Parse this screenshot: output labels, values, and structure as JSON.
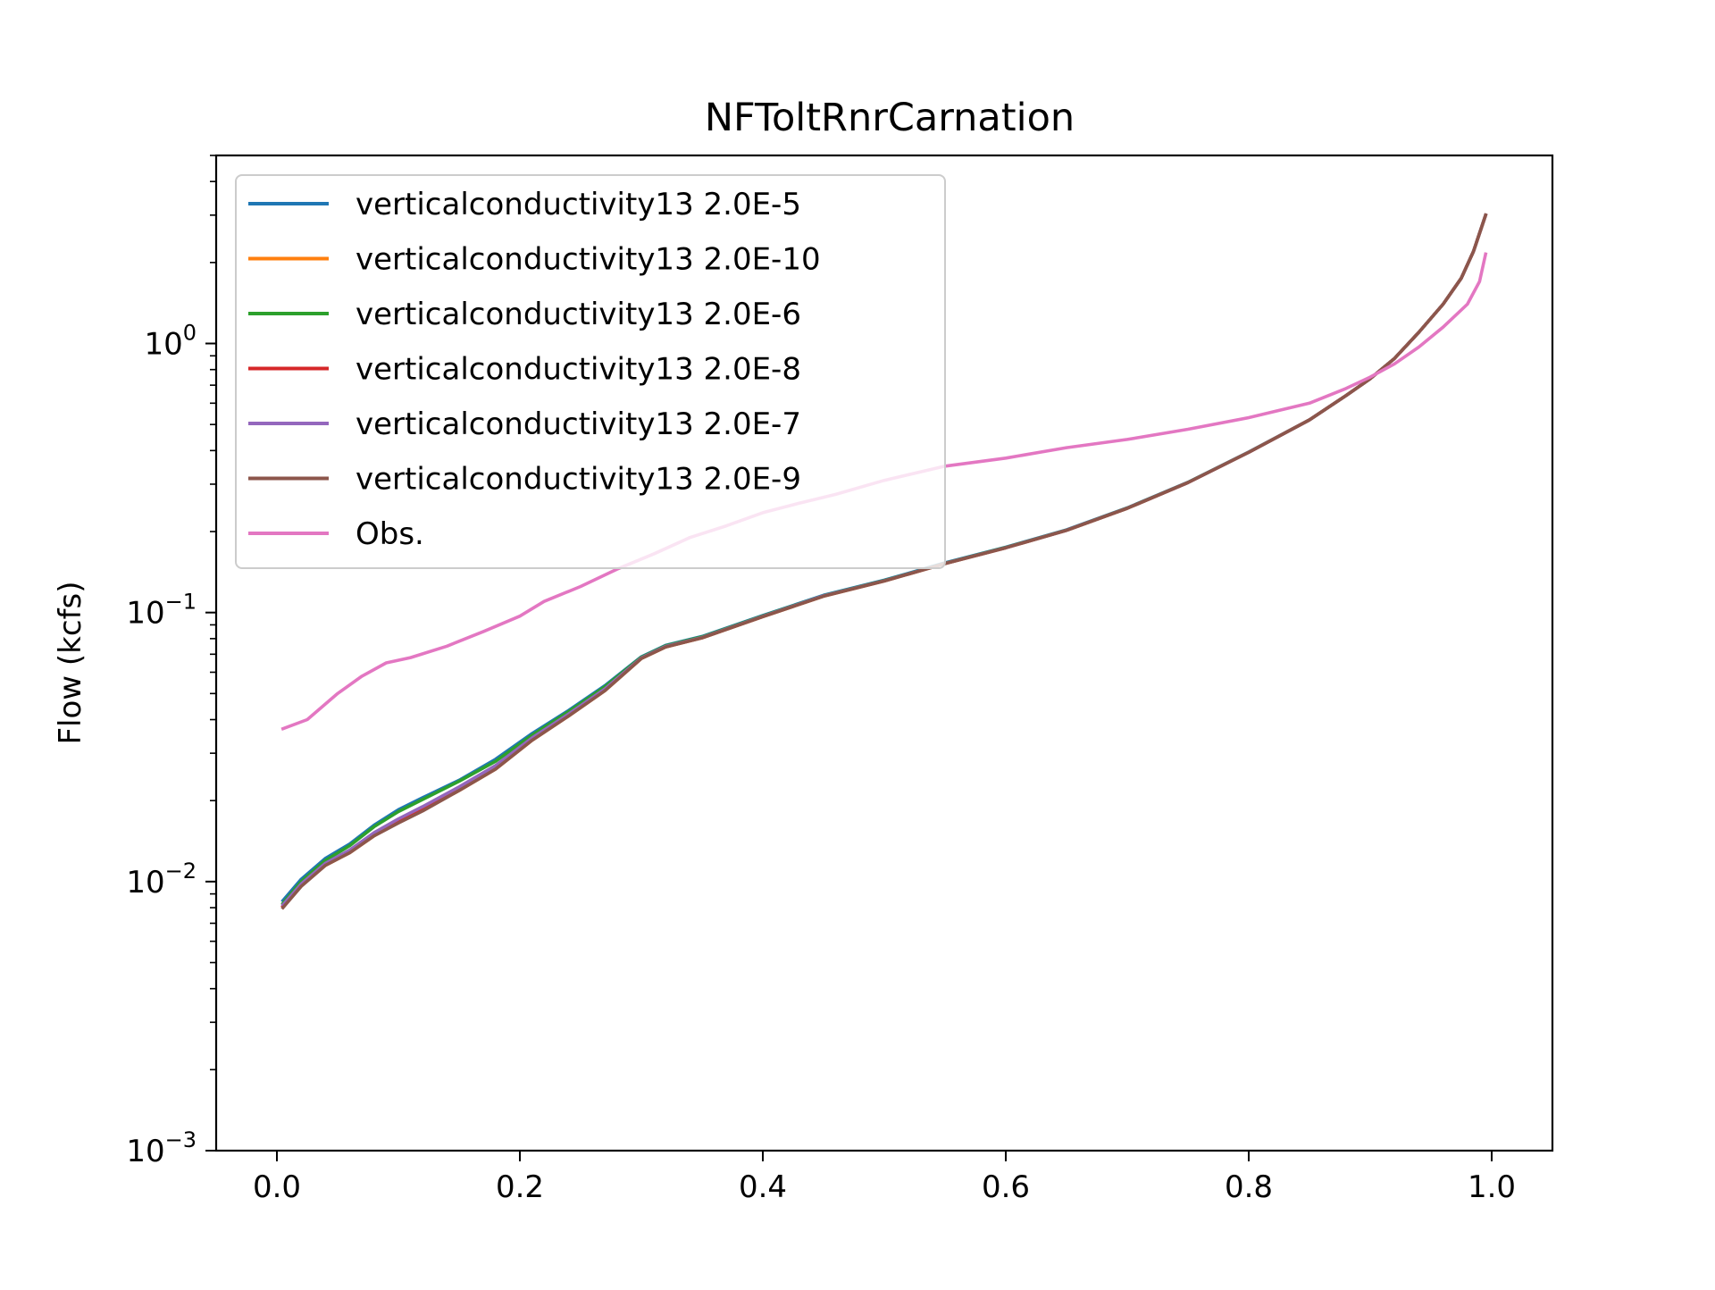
{
  "chart_data": {
    "type": "line",
    "title": "NFToltRnrCarnation",
    "xlabel": "",
    "ylabel": "Flow (kcfs)",
    "xlim": [
      -0.05,
      1.05
    ],
    "ylim": [
      0.001,
      5
    ],
    "y_scale": "log",
    "grid": false,
    "legend_position": "top-left",
    "x_ticks": [
      {
        "value": 0.0,
        "label": "0.0"
      },
      {
        "value": 0.2,
        "label": "0.2"
      },
      {
        "value": 0.4,
        "label": "0.4"
      },
      {
        "value": 0.6,
        "label": "0.6"
      },
      {
        "value": 0.8,
        "label": "0.8"
      },
      {
        "value": 1.0,
        "label": "1.0"
      }
    ],
    "y_ticks": [
      {
        "value": 0.001,
        "base": "10",
        "exp": "−3"
      },
      {
        "value": 0.01,
        "base": "10",
        "exp": "−2"
      },
      {
        "value": 0.1,
        "base": "10",
        "exp": "−1"
      },
      {
        "value": 1,
        "base": "10",
        "exp": "0"
      }
    ],
    "series": [
      {
        "name": "verticalconductivity13 2.0E-5",
        "color": "#1f77b4",
        "x": [
          0.005,
          0.02,
          0.04,
          0.06,
          0.08,
          0.1,
          0.12,
          0.15,
          0.18,
          0.21,
          0.24,
          0.27,
          0.3,
          0.32,
          0.35,
          0.4,
          0.45,
          0.5,
          0.55,
          0.6,
          0.65,
          0.7,
          0.75,
          0.8,
          0.85,
          0.88,
          0.9,
          0.92,
          0.94,
          0.96,
          0.975,
          0.985,
          0.995
        ],
        "y": [
          0.0085,
          0.0102,
          0.0122,
          0.0138,
          0.0162,
          0.0185,
          0.0205,
          0.0238,
          0.0285,
          0.0355,
          0.0432,
          0.0535,
          0.0685,
          0.0755,
          0.0815,
          0.0975,
          0.116,
          0.132,
          0.153,
          0.175,
          0.203,
          0.245,
          0.305,
          0.395,
          0.52,
          0.64,
          0.74,
          0.88,
          1.1,
          1.4,
          1.75,
          2.2,
          3.0
        ]
      },
      {
        "name": "verticalconductivity13 2.0E-10",
        "color": "#ff7f0e",
        "x": [
          0.005,
          0.02,
          0.04,
          0.06,
          0.08,
          0.1,
          0.12,
          0.15,
          0.18,
          0.21,
          0.24,
          0.27,
          0.3,
          0.32,
          0.35,
          0.4,
          0.45,
          0.5,
          0.55,
          0.6,
          0.65,
          0.7,
          0.75,
          0.8,
          0.85,
          0.88,
          0.9,
          0.92,
          0.94,
          0.96,
          0.975,
          0.985,
          0.995
        ],
        "y": [
          0.0081,
          0.0097,
          0.0115,
          0.0128,
          0.0148,
          0.0166,
          0.0184,
          0.0218,
          0.0262,
          0.0335,
          0.0412,
          0.0512,
          0.0675,
          0.0745,
          0.0805,
          0.0965,
          0.115,
          0.131,
          0.152,
          0.174,
          0.202,
          0.244,
          0.304,
          0.394,
          0.52,
          0.64,
          0.74,
          0.88,
          1.1,
          1.4,
          1.75,
          2.2,
          3.0
        ]
      },
      {
        "name": "verticalconductivity13 2.0E-6",
        "color": "#2ca02c",
        "x": [
          0.005,
          0.02,
          0.04,
          0.06,
          0.08,
          0.1,
          0.12,
          0.15,
          0.18,
          0.21,
          0.24,
          0.27,
          0.3,
          0.32,
          0.35,
          0.4,
          0.45,
          0.5,
          0.55,
          0.6,
          0.65,
          0.7,
          0.75,
          0.8,
          0.85,
          0.88,
          0.9,
          0.92,
          0.94,
          0.96,
          0.975,
          0.985,
          0.995
        ],
        "y": [
          0.0083,
          0.01,
          0.012,
          0.0136,
          0.016,
          0.0182,
          0.0202,
          0.0236,
          0.028,
          0.035,
          0.0428,
          0.053,
          0.0682,
          0.0752,
          0.0812,
          0.0972,
          0.1155,
          0.1315,
          0.1525,
          0.1745,
          0.2025,
          0.2445,
          0.3045,
          0.3945,
          0.52,
          0.64,
          0.74,
          0.88,
          1.1,
          1.4,
          1.75,
          2.2,
          3.0
        ]
      },
      {
        "name": "verticalconductivity13 2.0E-8",
        "color": "#d62728",
        "x": [
          0.005,
          0.02,
          0.04,
          0.06,
          0.08,
          0.1,
          0.12,
          0.15,
          0.18,
          0.21,
          0.24,
          0.27,
          0.3,
          0.32,
          0.35,
          0.4,
          0.45,
          0.5,
          0.55,
          0.6,
          0.65,
          0.7,
          0.75,
          0.8,
          0.85,
          0.88,
          0.9,
          0.92,
          0.94,
          0.96,
          0.975,
          0.985,
          0.995
        ],
        "y": [
          0.0081,
          0.0097,
          0.0116,
          0.0129,
          0.0149,
          0.0167,
          0.0185,
          0.022,
          0.0264,
          0.0337,
          0.0414,
          0.0514,
          0.0676,
          0.0746,
          0.0806,
          0.0966,
          0.1152,
          0.1311,
          0.1521,
          0.1741,
          0.2021,
          0.2441,
          0.3041,
          0.3941,
          0.52,
          0.64,
          0.74,
          0.88,
          1.1,
          1.4,
          1.75,
          2.2,
          3.0
        ]
      },
      {
        "name": "verticalconductivity13 2.0E-7",
        "color": "#9467bd",
        "x": [
          0.005,
          0.02,
          0.04,
          0.06,
          0.08,
          0.1,
          0.12,
          0.15,
          0.18,
          0.21,
          0.24,
          0.27,
          0.3,
          0.32,
          0.35,
          0.4,
          0.45,
          0.5,
          0.55,
          0.6,
          0.65,
          0.7,
          0.75,
          0.8,
          0.85,
          0.88,
          0.9,
          0.92,
          0.94,
          0.96,
          0.975,
          0.985,
          0.995
        ],
        "y": [
          0.0082,
          0.0098,
          0.0117,
          0.0131,
          0.0152,
          0.0171,
          0.019,
          0.0225,
          0.027,
          0.0342,
          0.0419,
          0.052,
          0.0678,
          0.0748,
          0.0808,
          0.0968,
          0.1153,
          0.1312,
          0.1522,
          0.1742,
          0.2022,
          0.2442,
          0.3042,
          0.3942,
          0.52,
          0.64,
          0.74,
          0.88,
          1.1,
          1.4,
          1.75,
          2.2,
          3.0
        ]
      },
      {
        "name": "verticalconductivity13 2.0E-9",
        "color": "#8c564b",
        "x": [
          0.005,
          0.02,
          0.04,
          0.06,
          0.08,
          0.1,
          0.12,
          0.15,
          0.18,
          0.21,
          0.24,
          0.27,
          0.3,
          0.32,
          0.35,
          0.4,
          0.45,
          0.5,
          0.55,
          0.6,
          0.65,
          0.7,
          0.75,
          0.8,
          0.85,
          0.88,
          0.9,
          0.92,
          0.94,
          0.96,
          0.975,
          0.985,
          0.995
        ],
        "y": [
          0.008,
          0.0096,
          0.0115,
          0.0128,
          0.0148,
          0.0165,
          0.0183,
          0.0218,
          0.0262,
          0.0335,
          0.0412,
          0.0512,
          0.0675,
          0.0745,
          0.0805,
          0.0965,
          0.115,
          0.131,
          0.152,
          0.174,
          0.202,
          0.244,
          0.304,
          0.394,
          0.52,
          0.64,
          0.74,
          0.88,
          1.1,
          1.4,
          1.75,
          2.2,
          3.0
        ]
      },
      {
        "name": "Obs.",
        "color": "#e377c2",
        "x": [
          0.005,
          0.025,
          0.05,
          0.07,
          0.09,
          0.11,
          0.14,
          0.17,
          0.2,
          0.22,
          0.25,
          0.28,
          0.31,
          0.34,
          0.37,
          0.4,
          0.43,
          0.46,
          0.5,
          0.55,
          0.6,
          0.65,
          0.7,
          0.75,
          0.8,
          0.85,
          0.88,
          0.9,
          0.92,
          0.94,
          0.96,
          0.98,
          0.99,
          0.995
        ],
        "y": [
          0.037,
          0.04,
          0.05,
          0.058,
          0.065,
          0.068,
          0.075,
          0.085,
          0.097,
          0.11,
          0.125,
          0.145,
          0.165,
          0.19,
          0.21,
          0.235,
          0.255,
          0.275,
          0.31,
          0.35,
          0.375,
          0.41,
          0.44,
          0.48,
          0.53,
          0.6,
          0.68,
          0.75,
          0.84,
          0.97,
          1.15,
          1.4,
          1.7,
          2.15
        ]
      }
    ]
  }
}
